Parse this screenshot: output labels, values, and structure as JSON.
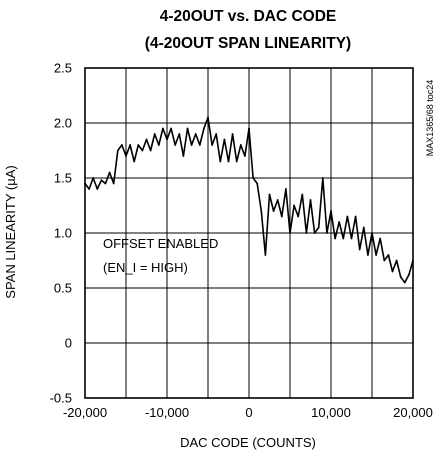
{
  "chart_data": {
    "type": "line",
    "title": "4-20OUT vs. DAC CODE",
    "subtitle": "(4-20OUT SPAN LINEARITY)",
    "xlabel": "DAC CODE (COUNTS)",
    "ylabel": "SPAN LINEARITY (µA)",
    "xlim": [
      -20000,
      20000
    ],
    "ylim": [
      -0.5,
      2.5
    ],
    "x_ticks": [
      -20000,
      -10000,
      0,
      10000,
      20000
    ],
    "x_tick_labels": [
      "-20,000",
      "-10,000",
      "0",
      "10,000",
      "20,000"
    ],
    "y_ticks": [
      -0.5,
      0,
      0.5,
      1.0,
      1.5,
      2.0,
      2.5
    ],
    "y_tick_labels": [
      "-0.5",
      "0",
      "0.5",
      "1.0",
      "1.5",
      "2.0",
      "2.5"
    ],
    "grid": true,
    "annotations": [
      "OFFSET ENABLED",
      "(EN_I = HIGH)"
    ],
    "side_label": "MAX1365/68 toc24",
    "series": [
      {
        "x": [
          -20000,
          -19500,
          -19000,
          -18500,
          -18000,
          -17500,
          -17000,
          -16500,
          -16000,
          -15500,
          -15000,
          -14500,
          -14000,
          -13500,
          -13000,
          -12500,
          -12000,
          -11500,
          -11000,
          -10500,
          -10000,
          -9500,
          -9000,
          -8500,
          -8000,
          -7500,
          -7000,
          -6500,
          -6000,
          -5500,
          -5000,
          -4500,
          -4000,
          -3500,
          -3000,
          -2500,
          -2000,
          -1500,
          -1000,
          -500,
          0,
          500,
          1000,
          1500,
          2000,
          2500,
          3000,
          3500,
          4000,
          4500,
          5000,
          5500,
          6000,
          6500,
          7000,
          7500,
          8000,
          8500,
          9000,
          9500,
          10000,
          10500,
          11000,
          11500,
          12000,
          12500,
          13000,
          13500,
          14000,
          14500,
          15000,
          15500,
          16000,
          16500,
          17000,
          17500,
          18000,
          18500,
          19000,
          19500,
          20000
        ],
        "y": [
          1.45,
          1.4,
          1.5,
          1.4,
          1.48,
          1.45,
          1.55,
          1.45,
          1.75,
          1.8,
          1.7,
          1.8,
          1.65,
          1.8,
          1.75,
          1.85,
          1.75,
          1.9,
          1.8,
          1.95,
          1.85,
          1.95,
          1.8,
          1.9,
          1.7,
          1.95,
          1.8,
          1.9,
          1.8,
          1.95,
          2.05,
          1.8,
          1.9,
          1.65,
          1.85,
          1.65,
          1.9,
          1.65,
          1.8,
          1.7,
          1.95,
          1.5,
          1.45,
          1.2,
          0.8,
          1.35,
          1.2,
          1.3,
          1.15,
          1.4,
          1.0,
          1.25,
          1.15,
          1.35,
          1.0,
          1.3,
          1.0,
          1.05,
          1.5,
          1.0,
          1.2,
          0.95,
          1.1,
          0.95,
          1.15,
          0.95,
          1.15,
          0.85,
          1.05,
          0.8,
          1.0,
          0.8,
          0.95,
          0.75,
          0.8,
          0.65,
          0.75,
          0.6,
          0.55,
          0.62,
          0.75
        ]
      }
    ]
  }
}
